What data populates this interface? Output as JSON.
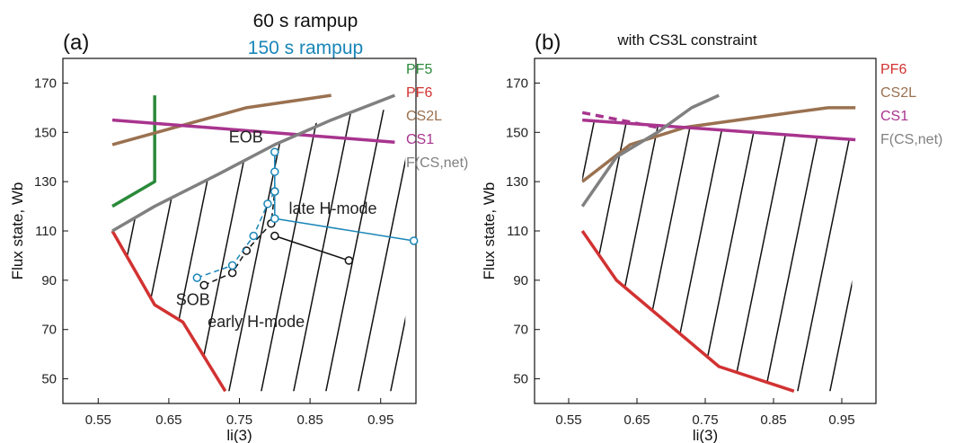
{
  "figure": {
    "top_title_black": "60 s rampup",
    "top_title_blue": "150 s rampup",
    "title_colors": {
      "black": "#111111",
      "blue": "#1a86b8"
    }
  },
  "chart_data": [
    {
      "type": "line",
      "panel_label": "(a)",
      "title": "",
      "xlabel": "li(3)",
      "ylabel": "Flux state, Wb",
      "xlim": [
        0.5,
        1.0
      ],
      "ylim": [
        40,
        180
      ],
      "xticks": [
        0.55,
        0.65,
        0.75,
        0.85,
        0.95
      ],
      "xtick_labels": [
        "0.55",
        "0.65",
        "0.75",
        "0.85",
        "0.95"
      ],
      "yticks": [
        50,
        70,
        90,
        110,
        130,
        150,
        170
      ],
      "ytick_labels": [
        "50",
        "70",
        "90",
        "110",
        "130",
        "150",
        "170"
      ],
      "grid": false,
      "legend_position": "right",
      "series": [
        {
          "name": "PF5",
          "color": "#2a8a3a",
          "dash": false,
          "width": 3.5,
          "points": [
            [
              0.57,
              120
            ],
            [
              0.63,
              130
            ],
            [
              0.63,
              165
            ]
          ]
        },
        {
          "name": "PF6",
          "color": "#d23232",
          "dash": false,
          "width": 3.5,
          "points": [
            [
              0.57,
              110
            ],
            [
              0.63,
              80
            ],
            [
              0.67,
              73
            ],
            [
              0.73,
              45
            ]
          ]
        },
        {
          "name": "CS2L",
          "color": "#9a7150",
          "dash": false,
          "width": 3.5,
          "points": [
            [
              0.57,
              145
            ],
            [
              0.76,
              160
            ],
            [
              0.88,
              165
            ]
          ]
        },
        {
          "name": "CS1",
          "color": "#a8348e",
          "dash": false,
          "width": 3.5,
          "points": [
            [
              0.57,
              155
            ],
            [
              0.97,
              146
            ]
          ]
        },
        {
          "name": "F(CS,net)",
          "color": "#808080",
          "dash": false,
          "width": 3.5,
          "points": [
            [
              0.57,
              110
            ],
            [
              0.63,
              120
            ],
            [
              0.72,
              133
            ],
            [
              0.8,
              145
            ],
            [
              0.88,
              155
            ],
            [
              0.97,
              165
            ]
          ]
        }
      ],
      "trajectories": [
        {
          "rampup": "60 s rampup",
          "color": "#111111",
          "dash": true,
          "markers": [
            [
              0.7,
              88
            ],
            [
              0.74,
              93
            ],
            [
              0.76,
              102
            ],
            [
              0.795,
              113
            ],
            [
              0.8,
              126
            ],
            [
              0.8,
              108
            ],
            [
              0.905,
              98
            ]
          ]
        },
        {
          "rampup": "150 s rampup",
          "color": "#1a86b8",
          "dash": true,
          "markers": [
            [
              0.69,
              91
            ],
            [
              0.74,
              96
            ],
            [
              0.77,
              108
            ],
            [
              0.79,
              121
            ],
            [
              0.8,
              126
            ],
            [
              0.8,
              134
            ],
            [
              0.8,
              142
            ],
            [
              0.8,
              115
            ],
            [
              0.997,
              106
            ]
          ]
        }
      ],
      "annotations": [
        "EOB",
        "late H-mode",
        "SOB",
        "early H-mode"
      ],
      "hatch_region": {
        "description": "diagonal hatching",
        "color": "#111111"
      }
    },
    {
      "type": "line",
      "panel_label": "(b)",
      "title": "with CS3L constraint",
      "xlabel": "li(3)",
      "ylabel": "Flux state, Wb",
      "xlim": [
        0.5,
        1.0
      ],
      "ylim": [
        40,
        180
      ],
      "xticks": [
        0.55,
        0.65,
        0.75,
        0.85,
        0.95
      ],
      "xtick_labels": [
        "0.55",
        "0.65",
        "0.75",
        "0.85",
        "0.95"
      ],
      "yticks": [
        50,
        70,
        90,
        110,
        130,
        150,
        170
      ],
      "ytick_labels": [
        "50",
        "70",
        "90",
        "110",
        "130",
        "150",
        "170"
      ],
      "grid": false,
      "legend_position": "right",
      "series": [
        {
          "name": "PF6",
          "color": "#d23232",
          "dash": false,
          "width": 3.5,
          "points": [
            [
              0.57,
              110
            ],
            [
              0.62,
              90
            ],
            [
              0.77,
              55
            ],
            [
              0.88,
              45
            ]
          ]
        },
        {
          "name": "CS2L",
          "color": "#9a7150",
          "dash": false,
          "width": 3.5,
          "points": [
            [
              0.57,
              130
            ],
            [
              0.64,
              145
            ],
            [
              0.72,
              152
            ],
            [
              0.85,
              157
            ],
            [
              0.93,
              160
            ],
            [
              0.97,
              160
            ]
          ]
        },
        {
          "name": "CS1",
          "color": "#a8348e",
          "dash": false,
          "width": 3.5,
          "points": [
            [
              0.57,
              155
            ],
            [
              0.97,
              147
            ]
          ]
        },
        {
          "name": "CS1-dashed",
          "color": "#a8348e",
          "dash": true,
          "width": 3.5,
          "points": [
            [
              0.57,
              158
            ],
            [
              0.68,
              152
            ]
          ]
        },
        {
          "name": "F(CS,net)",
          "color": "#808080",
          "dash": false,
          "width": 3.5,
          "points": [
            [
              0.57,
              120
            ],
            [
              0.62,
              140
            ],
            [
              0.68,
              150
            ],
            [
              0.73,
              160
            ],
            [
              0.77,
              165
            ]
          ]
        }
      ],
      "hatch_region": {
        "description": "diagonal hatching",
        "color": "#111111"
      }
    }
  ]
}
